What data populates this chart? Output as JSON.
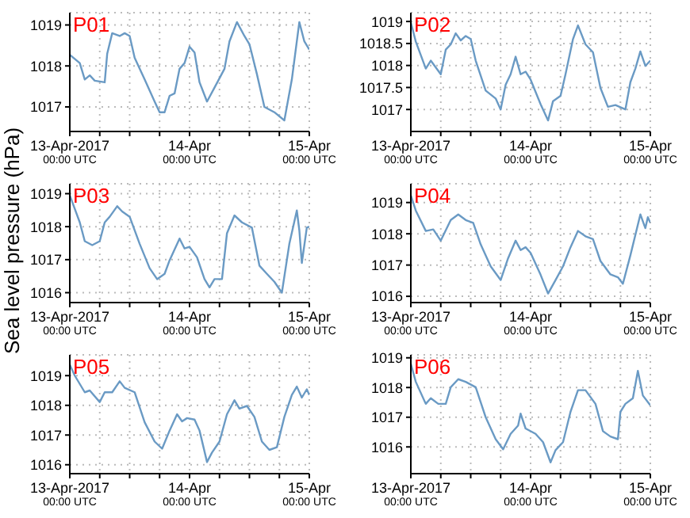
{
  "chart_data": [
    {
      "type": "line",
      "title": "P01",
      "color": "#6a9ac4",
      "grid": true,
      "xlim": [
        "2017-04-13T00:00",
        "2017-04-15T00:00"
      ],
      "xticks": [
        {
          "value": "2017-04-13T00:00",
          "label": "13-Apr-2017\n00:00 UTC"
        },
        {
          "value": "2017-04-13T06:00",
          "label": null
        },
        {
          "value": "2017-04-13T12:00",
          "label": null
        },
        {
          "value": "2017-04-13T18:00",
          "label": null
        },
        {
          "value": "2017-04-14T00:00",
          "label": "14-Apr\n00:00 UTC"
        },
        {
          "value": "2017-04-14T06:00",
          "label": null
        },
        {
          "value": "2017-04-14T12:00",
          "label": null
        },
        {
          "value": "2017-04-14T18:00",
          "label": null
        },
        {
          "value": "2017-04-15T00:00",
          "label": "15-Apr\n00:00 UTC"
        }
      ],
      "ylim": [
        1016.4,
        1019.3
      ],
      "yticks": [
        1017,
        1018,
        1019
      ],
      "x": [
        "2017-04-13T00:00",
        "2017-04-13T02:00",
        "2017-04-13T03:00",
        "2017-04-13T04:00",
        "2017-04-13T05:00",
        "2017-04-13T07:00",
        "2017-04-13T07:30",
        "2017-04-13T08:30",
        "2017-04-13T10:00",
        "2017-04-13T11:00",
        "2017-04-13T12:00",
        "2017-04-13T13:00",
        "2017-04-13T15:00",
        "2017-04-13T17:00",
        "2017-04-13T18:00",
        "2017-04-13T19:00",
        "2017-04-13T20:00",
        "2017-04-13T21:00",
        "2017-04-13T22:00",
        "2017-04-13T23:00",
        "2017-04-14T00:00",
        "2017-04-14T01:00",
        "2017-04-14T02:00",
        "2017-04-14T03:30",
        "2017-04-14T05:00",
        "2017-04-14T07:00",
        "2017-04-14T08:00",
        "2017-04-14T09:30",
        "2017-04-14T11:00",
        "2017-04-14T12:00",
        "2017-04-14T13:30",
        "2017-04-14T15:00",
        "2017-04-14T17:00",
        "2017-04-14T19:00",
        "2017-04-14T20:30",
        "2017-04-14T22:00",
        "2017-04-14T23:00",
        "2017-04-15T00:00"
      ],
      "values": [
        1018.27,
        1018.07,
        1017.67,
        1017.77,
        1017.64,
        1017.6,
        1018.3,
        1018.8,
        1018.73,
        1018.8,
        1018.73,
        1018.2,
        1017.67,
        1017.13,
        1016.87,
        1016.87,
        1017.27,
        1017.33,
        1017.93,
        1018.07,
        1018.47,
        1018.33,
        1017.6,
        1017.13,
        1017.47,
        1017.93,
        1018.6,
        1019.07,
        1018.73,
        1018.53,
        1017.8,
        1017.0,
        1016.87,
        1016.67,
        1017.67,
        1019.07,
        1018.6,
        1018.4
      ]
    },
    {
      "type": "line",
      "title": "P02",
      "color": "#6a9ac4",
      "grid": true,
      "xlim": [
        "2017-04-13T00:00",
        "2017-04-15T00:00"
      ],
      "xticks": [
        {
          "value": "2017-04-13T00:00",
          "label": "13-Apr-2017\n00:00 UTC"
        },
        {
          "value": "2017-04-13T06:00",
          "label": null
        },
        {
          "value": "2017-04-13T12:00",
          "label": null
        },
        {
          "value": "2017-04-13T18:00",
          "label": null
        },
        {
          "value": "2017-04-14T00:00",
          "label": "14-Apr\n00:00 UTC"
        },
        {
          "value": "2017-04-14T06:00",
          "label": null
        },
        {
          "value": "2017-04-14T12:00",
          "label": null
        },
        {
          "value": "2017-04-14T18:00",
          "label": null
        },
        {
          "value": "2017-04-15T00:00",
          "label": "15-Apr\n00:00 UTC"
        }
      ],
      "ylim": [
        1016.5,
        1019.2
      ],
      "yticks": [
        1017,
        1017.5,
        1018,
        1018.5,
        1019
      ],
      "x": [
        "2017-04-13T00:00",
        "2017-04-13T01:00",
        "2017-04-13T03:00",
        "2017-04-13T04:00",
        "2017-04-13T06:00",
        "2017-04-13T07:00",
        "2017-04-13T08:00",
        "2017-04-13T09:00",
        "2017-04-13T10:00",
        "2017-04-13T11:00",
        "2017-04-13T12:00",
        "2017-04-13T13:00",
        "2017-04-13T15:00",
        "2017-04-13T17:00",
        "2017-04-13T18:00",
        "2017-04-13T19:00",
        "2017-04-13T20:00",
        "2017-04-13T21:00",
        "2017-04-13T22:00",
        "2017-04-13T23:00",
        "2017-04-14T00:00",
        "2017-04-14T02:00",
        "2017-04-14T03:30",
        "2017-04-14T04:30",
        "2017-04-14T06:00",
        "2017-04-14T07:00",
        "2017-04-14T08:30",
        "2017-04-14T09:30",
        "2017-04-14T11:00",
        "2017-04-14T12:30",
        "2017-04-14T14:00",
        "2017-04-14T15:30",
        "2017-04-14T17:00",
        "2017-04-14T19:00",
        "2017-04-14T20:00",
        "2017-04-14T21:00",
        "2017-04-14T22:00",
        "2017-04-14T23:00",
        "2017-04-15T00:00"
      ],
      "values": [
        1018.98,
        1018.54,
        1017.93,
        1018.11,
        1017.8,
        1018.36,
        1018.48,
        1018.73,
        1018.57,
        1018.67,
        1018.6,
        1018.11,
        1017.43,
        1017.25,
        1017.0,
        1017.56,
        1017.8,
        1018.2,
        1017.8,
        1017.86,
        1017.68,
        1017.12,
        1016.75,
        1017.19,
        1017.31,
        1017.8,
        1018.6,
        1018.91,
        1018.48,
        1018.3,
        1017.49,
        1017.06,
        1017.1,
        1017.0,
        1017.62,
        1017.93,
        1018.32,
        1017.99,
        1018.11
      ]
    },
    {
      "type": "line",
      "title": "P03",
      "ylabel": "Sea level pressure (hPa)",
      "color": "#6a9ac4",
      "grid": true,
      "xlim": [
        "2017-04-13T00:00",
        "2017-04-15T00:00"
      ],
      "xticks": [
        {
          "value": "2017-04-13T00:00",
          "label": "13-Apr-2017\n00:00 UTC"
        },
        {
          "value": "2017-04-13T06:00",
          "label": null
        },
        {
          "value": "2017-04-13T12:00",
          "label": null
        },
        {
          "value": "2017-04-13T18:00",
          "label": null
        },
        {
          "value": "2017-04-14T00:00",
          "label": "14-Apr\n00:00 UTC"
        },
        {
          "value": "2017-04-14T06:00",
          "label": null
        },
        {
          "value": "2017-04-14T12:00",
          "label": null
        },
        {
          "value": "2017-04-14T18:00",
          "label": null
        },
        {
          "value": "2017-04-15T00:00",
          "label": "15-Apr\n00:00 UTC"
        }
      ],
      "ylim": [
        1015.7,
        1019.3
      ],
      "yticks": [
        1016,
        1017,
        1018,
        1019
      ],
      "x": [
        "2017-04-13T00:00",
        "2017-04-13T02:00",
        "2017-04-13T03:00",
        "2017-04-13T04:30",
        "2017-04-13T06:00",
        "2017-04-13T07:00",
        "2017-04-13T08:00",
        "2017-04-13T09:30",
        "2017-04-13T10:30",
        "2017-04-13T12:00",
        "2017-04-13T14:00",
        "2017-04-13T16:00",
        "2017-04-13T17:30",
        "2017-04-13T19:00",
        "2017-04-13T20:00",
        "2017-04-13T22:00",
        "2017-04-13T23:00",
        "2017-04-14T00:00",
        "2017-04-14T01:30",
        "2017-04-14T03:00",
        "2017-04-14T04:00",
        "2017-04-14T05:00",
        "2017-04-14T06:30",
        "2017-04-14T07:30",
        "2017-04-14T09:00",
        "2017-04-14T10:30",
        "2017-04-14T12:30",
        "2017-04-14T14:00",
        "2017-04-14T15:30",
        "2017-04-14T17:00",
        "2017-04-14T18:30",
        "2017-04-14T20:00",
        "2017-04-14T21:30",
        "2017-04-14T22:00",
        "2017-04-14T22:30",
        "2017-04-14T23:30",
        "2017-04-15T00:00"
      ],
      "values": [
        1018.95,
        1018.13,
        1017.56,
        1017.44,
        1017.56,
        1018.13,
        1018.3,
        1018.62,
        1018.46,
        1018.3,
        1017.48,
        1016.74,
        1016.41,
        1016.57,
        1016.98,
        1017.64,
        1017.34,
        1017.39,
        1017.07,
        1016.41,
        1016.16,
        1016.41,
        1016.41,
        1017.8,
        1018.34,
        1018.13,
        1017.97,
        1016.82,
        1016.57,
        1016.33,
        1016.0,
        1017.48,
        1018.49,
        1017.89,
        1016.9,
        1017.97,
        1018.0
      ]
    },
    {
      "type": "line",
      "title": "P04",
      "color": "#6a9ac4",
      "grid": true,
      "xlim": [
        "2017-04-13T00:00",
        "2017-04-15T00:00"
      ],
      "xticks": [
        {
          "value": "2017-04-13T00:00",
          "label": "13-Apr-2017\n00:00 UTC"
        },
        {
          "value": "2017-04-13T06:00",
          "label": null
        },
        {
          "value": "2017-04-13T12:00",
          "label": null
        },
        {
          "value": "2017-04-13T18:00",
          "label": null
        },
        {
          "value": "2017-04-14T00:00",
          "label": "14-Apr\n00:00 UTC"
        },
        {
          "value": "2017-04-14T06:00",
          "label": null
        },
        {
          "value": "2017-04-14T12:00",
          "label": null
        },
        {
          "value": "2017-04-14T18:00",
          "label": null
        },
        {
          "value": "2017-04-15T00:00",
          "label": "15-Apr\n00:00 UTC"
        }
      ],
      "ylim": [
        1015.8,
        1019.6
      ],
      "yticks": [
        1016,
        1017,
        1018,
        1019
      ],
      "x": [
        "2017-04-13T00:00",
        "2017-04-13T01:00",
        "2017-04-13T03:00",
        "2017-04-13T04:30",
        "2017-04-13T06:00",
        "2017-04-13T08:00",
        "2017-04-13T09:30",
        "2017-04-13T11:00",
        "2017-04-13T12:30",
        "2017-04-13T14:00",
        "2017-04-13T16:00",
        "2017-04-13T18:00",
        "2017-04-13T19:30",
        "2017-04-13T21:00",
        "2017-04-13T22:00",
        "2017-04-13T23:00",
        "2017-04-14T00:00",
        "2017-04-14T02:00",
        "2017-04-14T03:30",
        "2017-04-14T05:00",
        "2017-04-14T06:30",
        "2017-04-14T08:00",
        "2017-04-14T09:30",
        "2017-04-14T11:00",
        "2017-04-14T12:30",
        "2017-04-14T14:00",
        "2017-04-14T16:00",
        "2017-04-14T17:30",
        "2017-04-14T18:30",
        "2017-04-14T20:00",
        "2017-04-14T22:00",
        "2017-04-14T23:00",
        "2017-04-14T23:30",
        "2017-04-15T00:00"
      ],
      "values": [
        1019.23,
        1018.74,
        1018.09,
        1018.14,
        1017.78,
        1018.44,
        1018.62,
        1018.44,
        1018.35,
        1017.66,
        1016.96,
        1016.52,
        1017.22,
        1017.78,
        1017.48,
        1017.57,
        1017.39,
        1016.69,
        1016.09,
        1016.52,
        1016.96,
        1017.57,
        1018.09,
        1017.92,
        1017.83,
        1017.13,
        1016.7,
        1016.61,
        1016.4,
        1017.31,
        1018.62,
        1018.18,
        1018.53,
        1018.35
      ]
    },
    {
      "type": "line",
      "title": "P05",
      "color": "#6a9ac4",
      "grid": true,
      "xlim": [
        "2017-04-13T00:00",
        "2017-04-15T00:00"
      ],
      "xticks": [
        {
          "value": "2017-04-13T00:00",
          "label": "13-Apr-2017\n00:00 UTC"
        },
        {
          "value": "2017-04-13T06:00",
          "label": null
        },
        {
          "value": "2017-04-13T12:00",
          "label": null
        },
        {
          "value": "2017-04-13T18:00",
          "label": null
        },
        {
          "value": "2017-04-14T00:00",
          "label": "14-Apr\n00:00 UTC"
        },
        {
          "value": "2017-04-14T06:00",
          "label": null
        },
        {
          "value": "2017-04-14T12:00",
          "label": null
        },
        {
          "value": "2017-04-14T18:00",
          "label": null
        },
        {
          "value": "2017-04-15T00:00",
          "label": "15-Apr\n00:00 UTC"
        }
      ],
      "ylim": [
        1015.7,
        1019.7
      ],
      "yticks": [
        1016,
        1017,
        1018,
        1019
      ],
      "x": [
        "2017-04-13T00:00",
        "2017-04-13T01:00",
        "2017-04-13T03:00",
        "2017-04-13T04:00",
        "2017-04-13T06:00",
        "2017-04-13T07:00",
        "2017-04-13T08:30",
        "2017-04-13T10:00",
        "2017-04-13T11:00",
        "2017-04-13T13:00",
        "2017-04-13T15:00",
        "2017-04-13T17:00",
        "2017-04-13T18:30",
        "2017-04-13T20:00",
        "2017-04-13T21:30",
        "2017-04-13T22:30",
        "2017-04-13T23:30",
        "2017-04-14T01:00",
        "2017-04-14T02:00",
        "2017-04-14T03:30",
        "2017-04-14T04:30",
        "2017-04-14T06:00",
        "2017-04-14T07:30",
        "2017-04-14T09:00",
        "2017-04-14T10:00",
        "2017-04-14T11:30",
        "2017-04-14T13:00",
        "2017-04-14T14:30",
        "2017-04-14T16:00",
        "2017-04-14T17:30",
        "2017-04-14T19:00",
        "2017-04-14T20:30",
        "2017-04-14T21:30",
        "2017-04-14T22:30",
        "2017-04-14T23:30",
        "2017-04-15T00:00"
      ],
      "values": [
        1019.37,
        1019.0,
        1018.44,
        1018.5,
        1018.11,
        1018.44,
        1018.44,
        1018.81,
        1018.59,
        1018.44,
        1017.43,
        1016.78,
        1016.54,
        1017.15,
        1017.7,
        1017.46,
        1017.57,
        1017.52,
        1017.15,
        1016.09,
        1016.41,
        1016.78,
        1017.7,
        1018.17,
        1017.89,
        1017.98,
        1017.61,
        1016.78,
        1016.5,
        1016.59,
        1017.61,
        1018.35,
        1018.63,
        1018.26,
        1018.54,
        1018.35
      ]
    },
    {
      "type": "line",
      "title": "P06",
      "color": "#6a9ac4",
      "grid": true,
      "xlim": [
        "2017-04-13T00:00",
        "2017-04-15T00:00"
      ],
      "xticks": [
        {
          "value": "2017-04-13T00:00",
          "label": "13-Apr-2017\n00:00 UTC"
        },
        {
          "value": "2017-04-13T06:00",
          "label": null
        },
        {
          "value": "2017-04-13T12:00",
          "label": null
        },
        {
          "value": "2017-04-13T18:00",
          "label": null
        },
        {
          "value": "2017-04-14T00:00",
          "label": "14-Apr\n00:00 UTC"
        },
        {
          "value": "2017-04-14T06:00",
          "label": null
        },
        {
          "value": "2017-04-14T12:00",
          "label": null
        },
        {
          "value": "2017-04-14T18:00",
          "label": null
        },
        {
          "value": "2017-04-15T00:00",
          "label": "15-Apr\n00:00 UTC"
        }
      ],
      "ylim": [
        1015.1,
        1019.1
      ],
      "yticks": [
        1016,
        1017,
        1018,
        1019
      ],
      "x": [
        "2017-04-13T00:00",
        "2017-04-13T01:00",
        "2017-04-13T03:00",
        "2017-04-13T04:00",
        "2017-04-13T05:30",
        "2017-04-13T07:00",
        "2017-04-13T08:00",
        "2017-04-13T09:30",
        "2017-04-13T11:00",
        "2017-04-13T13:00",
        "2017-04-13T15:00",
        "2017-04-13T17:00",
        "2017-04-13T18:30",
        "2017-04-13T20:00",
        "2017-04-13T21:30",
        "2017-04-13T22:00",
        "2017-04-13T23:00",
        "2017-04-14T01:00",
        "2017-04-14T02:30",
        "2017-04-14T04:00",
        "2017-04-14T05:00",
        "2017-04-14T06:30",
        "2017-04-14T08:00",
        "2017-04-14T09:30",
        "2017-04-14T11:00",
        "2017-04-14T13:00",
        "2017-04-14T14:30",
        "2017-04-14T16:00",
        "2017-04-14T17:30",
        "2017-04-14T18:00",
        "2017-04-14T19:00",
        "2017-04-14T20:30",
        "2017-04-14T21:30",
        "2017-04-14T22:30",
        "2017-04-15T00:00"
      ],
      "values": [
        1018.8,
        1018.19,
        1017.45,
        1017.64,
        1017.45,
        1017.45,
        1018.01,
        1018.28,
        1018.19,
        1018.01,
        1017.0,
        1016.26,
        1015.92,
        1016.44,
        1016.72,
        1017.12,
        1016.62,
        1016.44,
        1016.16,
        1015.48,
        1015.89,
        1016.16,
        1017.18,
        1017.91,
        1017.91,
        1017.45,
        1016.53,
        1016.35,
        1016.26,
        1017.18,
        1017.45,
        1017.64,
        1018.56,
        1017.73,
        1017.4
      ]
    }
  ]
}
